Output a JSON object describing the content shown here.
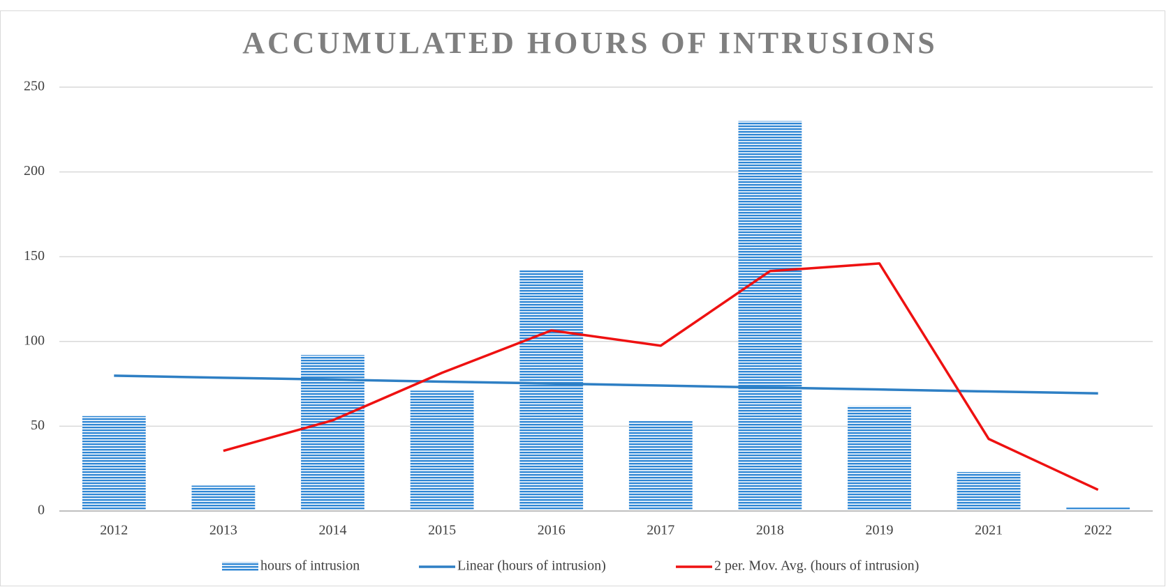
{
  "chart_data": {
    "type": "bar",
    "title": "ACCUMULATED HOURS OF INTRUSIONS",
    "categories": [
      "2012",
      "2013",
      "2014",
      "2015",
      "2016",
      "2017",
      "2018",
      "2019",
      "2021",
      "2022"
    ],
    "series": [
      {
        "name": "hours of intrusion",
        "type": "bar",
        "color": "#2e86d4",
        "values": [
          56,
          15,
          92,
          71,
          142,
          53,
          230,
          62,
          23,
          2
        ]
      },
      {
        "name": "Linear (hours of intrusion)",
        "type": "line",
        "color": "#2e7fc4",
        "values": [
          79.8,
          78.6,
          77.5,
          76.3,
          75.2,
          74.0,
          72.8,
          71.7,
          70.5,
          69.4
        ]
      },
      {
        "name": "2 per. Mov. Avg. (hours of intrusion)",
        "type": "line",
        "color": "#ee1111",
        "values": [
          null,
          35.5,
          53.5,
          81.5,
          106.5,
          97.5,
          141.5,
          146,
          42.5,
          12.5
        ]
      }
    ],
    "ylim": [
      0,
      250
    ],
    "yticks": [
      0,
      50,
      100,
      150,
      200,
      250
    ],
    "grid": true,
    "legend": "bottom"
  }
}
